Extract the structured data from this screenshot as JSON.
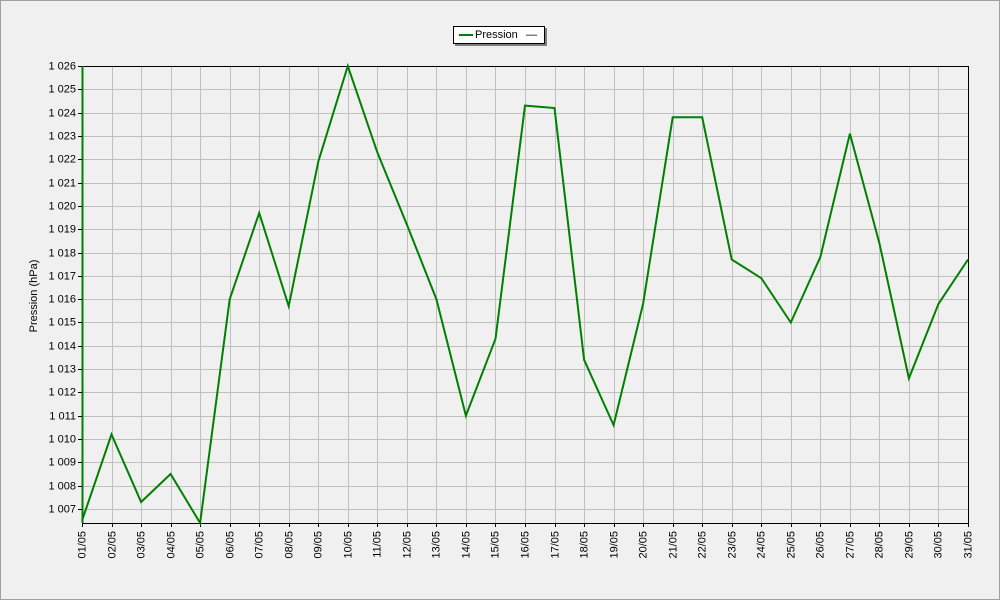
{
  "legend": {
    "series_label": "Pression",
    "dash": "—"
  },
  "colors": {
    "series": "#008000",
    "grid": "#c0c0c0",
    "background": "#f0f0f0",
    "axis": "#000000"
  },
  "chart_data": {
    "type": "line",
    "title": "",
    "xlabel": "",
    "ylabel": "Pression (hPa)",
    "ylim": [
      1006.4,
      1026.0
    ],
    "grid": true,
    "legend_position": "top-center",
    "yticks": [
      1007,
      1008,
      1009,
      1010,
      1011,
      1012,
      1013,
      1014,
      1015,
      1016,
      1017,
      1018,
      1019,
      1020,
      1021,
      1022,
      1023,
      1024,
      1025,
      1026
    ],
    "ytick_labels": [
      "1 007",
      "1 008",
      "1 009",
      "1 010",
      "1 011",
      "1 012",
      "1 013",
      "1 014",
      "1 015",
      "1 016",
      "1 017",
      "1 018",
      "1 019",
      "1 020",
      "1 021",
      "1 022",
      "1 023",
      "1 024",
      "1 025",
      "1 026"
    ],
    "categories": [
      "01/05",
      "02/05",
      "03/05",
      "04/05",
      "05/05",
      "06/05",
      "07/05",
      "08/05",
      "09/05",
      "10/05",
      "11/05",
      "12/05",
      "13/05",
      "14/05",
      "15/05",
      "16/05",
      "17/05",
      "18/05",
      "19/05",
      "20/05",
      "21/05",
      "22/05",
      "23/05",
      "24/05",
      "25/05",
      "26/05",
      "27/05",
      "28/05",
      "29/05",
      "30/05",
      "31/05"
    ],
    "series": [
      {
        "name": "Pression",
        "values": [
          1006.5,
          1010.2,
          1007.3,
          1008.5,
          1006.4,
          1016.0,
          1019.7,
          1015.7,
          1021.9,
          1026.0,
          1022.3,
          1019.2,
          1016.0,
          1011.0,
          1014.3,
          1024.3,
          1024.2,
          1013.4,
          1010.6,
          1015.8,
          1023.8,
          1023.8,
          1017.7,
          1016.9,
          1015.0,
          1017.8,
          1023.1,
          1018.4,
          1012.6,
          1015.8,
          1017.7
        ]
      }
    ]
  }
}
